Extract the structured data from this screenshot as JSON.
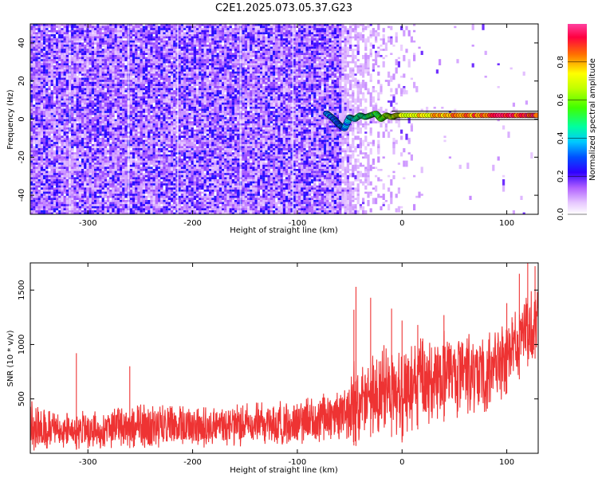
{
  "title": "C2E1.2025.073.05.37.G23",
  "chart_data": [
    {
      "type": "heatmap",
      "name": "spectrogram",
      "xlabel": "Height of straight line (km)",
      "ylabel": "Frequency (Hz)",
      "xlim": [
        -355,
        130
      ],
      "ylim": [
        -50,
        50
      ],
      "xticks": [
        -300,
        -200,
        -100,
        0,
        100
      ],
      "yticks": [
        -40,
        -20,
        0,
        20,
        40
      ],
      "noise_region_x": [
        -355,
        -60
      ],
      "transition_x": [
        -72,
        -40
      ],
      "signal_line": {
        "x": [
          -72,
          -65,
          -60,
          -55,
          -50,
          -45,
          -40,
          -35,
          -30,
          -25,
          -20,
          -15,
          -10,
          -5,
          0,
          20,
          40,
          60,
          80,
          100,
          120,
          130
        ],
        "y": [
          3,
          0,
          -3,
          -5,
          1,
          0,
          2,
          1,
          2,
          3,
          0,
          2,
          1,
          2,
          2,
          2,
          2,
          2,
          2,
          2,
          2,
          2
        ],
        "amplitude": [
          0.35,
          0.3,
          0.3,
          0.3,
          0.35,
          0.4,
          0.45,
          0.5,
          0.5,
          0.55,
          0.5,
          0.6,
          0.6,
          0.7,
          0.7,
          0.75,
          0.8,
          0.85,
          0.85,
          0.9,
          0.9,
          0.9
        ]
      },
      "colorbar": {
        "label": "Normalized spectral amplitude",
        "ticks": [
          0.0,
          0.2,
          0.4,
          0.6,
          0.8
        ],
        "range": [
          0,
          1
        ]
      }
    },
    {
      "type": "line",
      "name": "snr",
      "color": "#ee3333",
      "xlabel": "Height of straight line (km)",
      "ylabel": "SNR (10 * v/v)",
      "xlim": [
        -355,
        130
      ],
      "ylim": [
        0,
        1750
      ],
      "xticks": [
        -300,
        -200,
        -100,
        0,
        100
      ],
      "yticks": [
        500,
        1000,
        1500
      ],
      "envelope": {
        "x": [
          -355,
          -330,
          -300,
          -250,
          -200,
          -150,
          -100,
          -70,
          -50,
          -45,
          -40,
          -30,
          -20,
          -10,
          0,
          10,
          30,
          50,
          70,
          90,
          100,
          110,
          120,
          130
        ],
        "low": [
          0,
          20,
          40,
          50,
          50,
          60,
          80,
          100,
          120,
          60,
          100,
          150,
          200,
          150,
          100,
          200,
          280,
          300,
          350,
          400,
          550,
          650,
          800,
          900
        ],
        "high": [
          500,
          360,
          400,
          450,
          440,
          460,
          500,
          560,
          620,
          900,
          780,
          950,
          1000,
          980,
          900,
          1020,
          1120,
          1150,
          1080,
          1140,
          1250,
          1320,
          1450,
          1600
        ]
      },
      "spikes": [
        {
          "x": -355,
          "y": 700
        },
        {
          "x": -311,
          "y": 920
        },
        {
          "x": -260,
          "y": 800
        },
        {
          "x": -46,
          "y": 1320
        },
        {
          "x": -44,
          "y": 1530
        },
        {
          "x": -30,
          "y": 1430
        },
        {
          "x": -10,
          "y": 1330
        },
        {
          "x": 0,
          "y": 1220
        },
        {
          "x": 15,
          "y": 1180
        },
        {
          "x": 40,
          "y": 1270
        },
        {
          "x": 100,
          "y": 1380
        },
        {
          "x": 112,
          "y": 1650
        },
        {
          "x": 120,
          "y": 1750
        },
        {
          "x": 127,
          "y": 1720
        }
      ]
    }
  ]
}
